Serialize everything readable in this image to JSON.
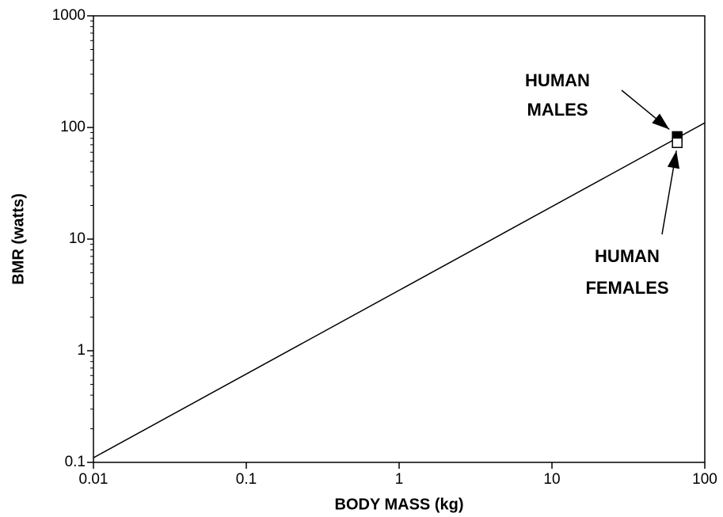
{
  "chart_data": {
    "type": "scatter",
    "xlabel": "BODY MASS (kg)",
    "ylabel": "BMR (watts)",
    "xscale": "log",
    "yscale": "log",
    "xlim": [
      0.01,
      100
    ],
    "ylim": [
      0.1,
      1000
    ],
    "xticks": [
      0.01,
      0.1,
      1,
      10,
      100
    ],
    "yticks": [
      0.1,
      1,
      10,
      100,
      1000
    ],
    "series": [
      {
        "type": "line",
        "color": "#000000",
        "x": [
          0.01,
          100
        ],
        "values": [
          0.11,
          110
        ]
      },
      {
        "type": "points",
        "marker": "filled-square",
        "color": "#000000",
        "x": [
          66
        ],
        "values": [
          83
        ]
      },
      {
        "type": "points",
        "marker": "open-square",
        "color": "#000000",
        "x": [
          66
        ],
        "values": [
          73
        ]
      }
    ],
    "annotations": [
      {
        "lines": [
          "HUMAN",
          "MALES"
        ]
      },
      {
        "lines": [
          "HUMAN",
          "FEMALES"
        ]
      }
    ]
  }
}
